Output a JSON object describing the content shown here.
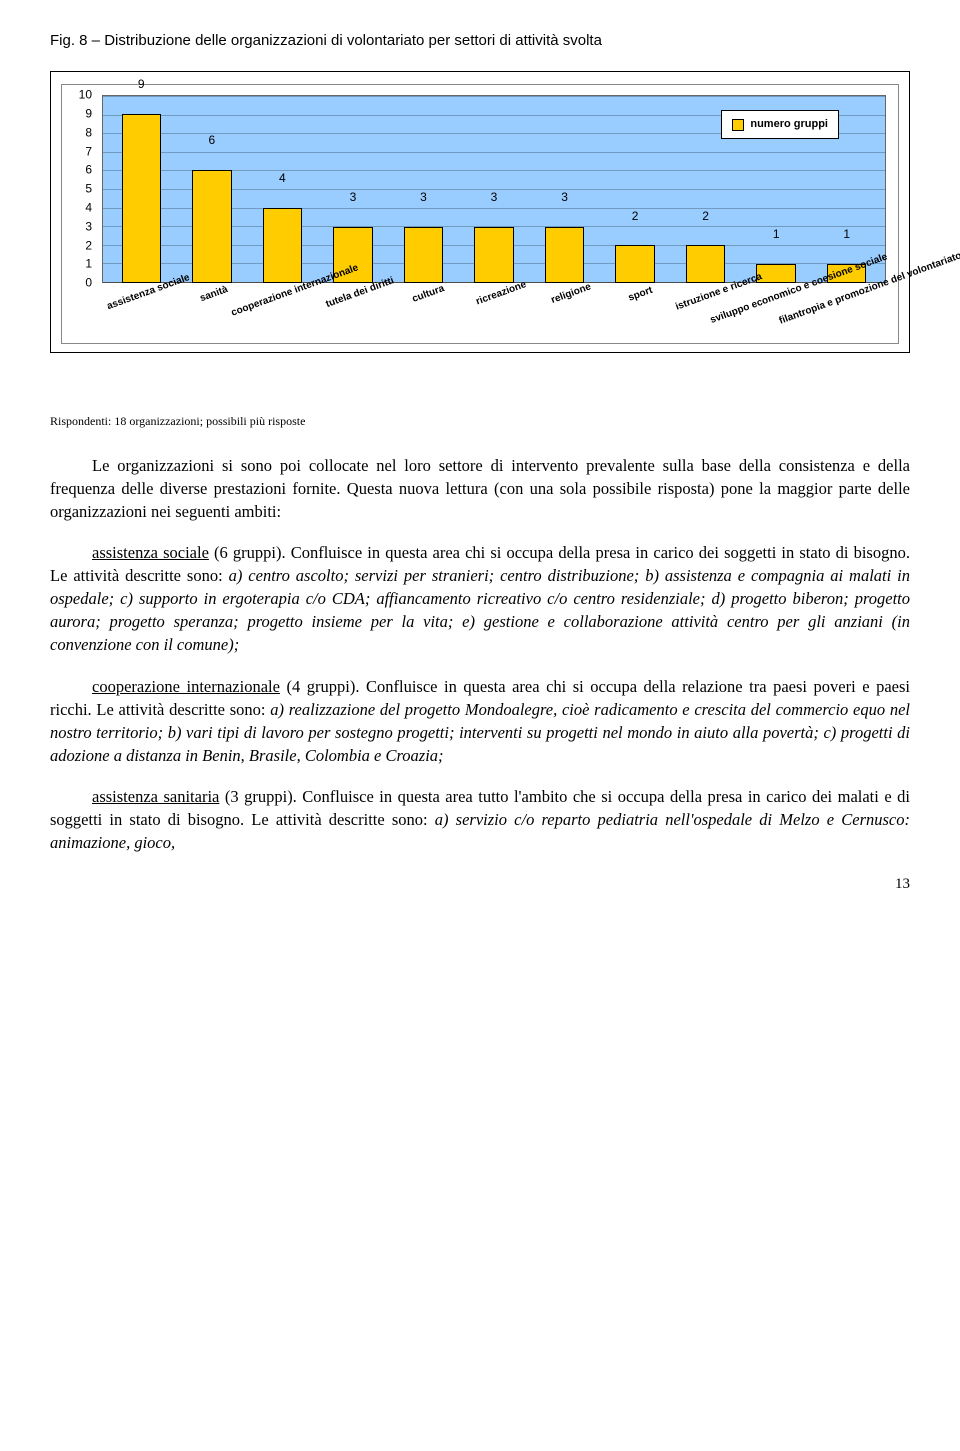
{
  "figure": {
    "type": "bar",
    "title": "Fig. 8 – Distribuzione delle organizzazioni di volontariato per settori di attività svolta",
    "legend_label": "numero gruppi",
    "legend_swatch_color": "#ffcc00",
    "legend_bg": "#ffffff",
    "legend_top_pct": 8,
    "legend_right_pct": 6,
    "plot_bg_color": "#99ccff",
    "bar_fill": "#ffcc00",
    "bar_border": "#000000",
    "grid_color": "rgba(0,0,0,0.25)",
    "label_fontsize": 10,
    "value_fontsize": 12,
    "ylim_max": 10,
    "ytick_step": 1,
    "categories": [
      "assistenza sociale",
      "sanità",
      "cooperazione internazionale",
      "tutela dei diritti",
      "cultura",
      "ricreazione",
      "religione",
      "sport",
      "istruzione e ricerca",
      "sviluppo economico e coesione sociale",
      "filantropia e promozione del volontariato"
    ],
    "values": [
      9,
      6,
      4,
      3,
      3,
      3,
      3,
      2,
      2,
      1,
      1
    ]
  },
  "respondents_note": "Rispondenti: 18 organizzazioni; possibili più risposte",
  "paragraphs": {
    "p1": "Le organizzazioni si sono poi collocate nel loro settore di intervento prevalente sulla base della consistenza e della frequenza delle diverse prestazioni fornite. Questa nuova lettura (con una sola possibile risposta) pone la maggior parte delle organizzazioni nei seguenti ambiti:",
    "p2_lead": "assistenza sociale",
    "p2_lead_tail": " (6 gruppi). Confluisce in questa area chi si occupa della presa in carico dei soggetti in stato di bisogno. Le attività descritte sono: ",
    "p2_italic": "a) centro ascolto; servizi per stranieri; centro distribuzione; b) assistenza e compagnia ai malati in ospedale; c) supporto in ergoterapia c/o CDA; affiancamento ricreativo c/o centro residenziale; d) progetto biberon; progetto aurora; progetto speranza; progetto insieme per la vita; e) gestione e collaborazione attività centro per gli anziani (in convenzione con il comune);",
    "p3_lead": "cooperazione internazionale",
    "p3_lead_tail": " (4 gruppi). Confluisce in questa area chi si occupa della relazione tra paesi poveri e paesi ricchi. Le attività descritte sono: ",
    "p3_italic": "a) realizzazione del progetto Mondoalegre, cioè radicamento e crescita del commercio equo nel nostro territorio; b) vari tipi di lavoro per sostegno progetti; interventi su progetti nel mondo in aiuto alla povertà; c) progetti di adozione a distanza in Benin, Brasile, Colombia e Croazia;",
    "p4_lead": "assistenza sanitaria",
    "p4_lead_tail": " (3 gruppi). Confluisce in questa area tutto l'ambito che si occupa della presa in carico dei malati e di soggetti in stato di bisogno. Le attività descritte sono: ",
    "p4_italic": "a)  servizio c/o reparto pediatria nell'ospedale di Melzo e Cernusco: animazione, gioco,"
  },
  "page_number": "13"
}
